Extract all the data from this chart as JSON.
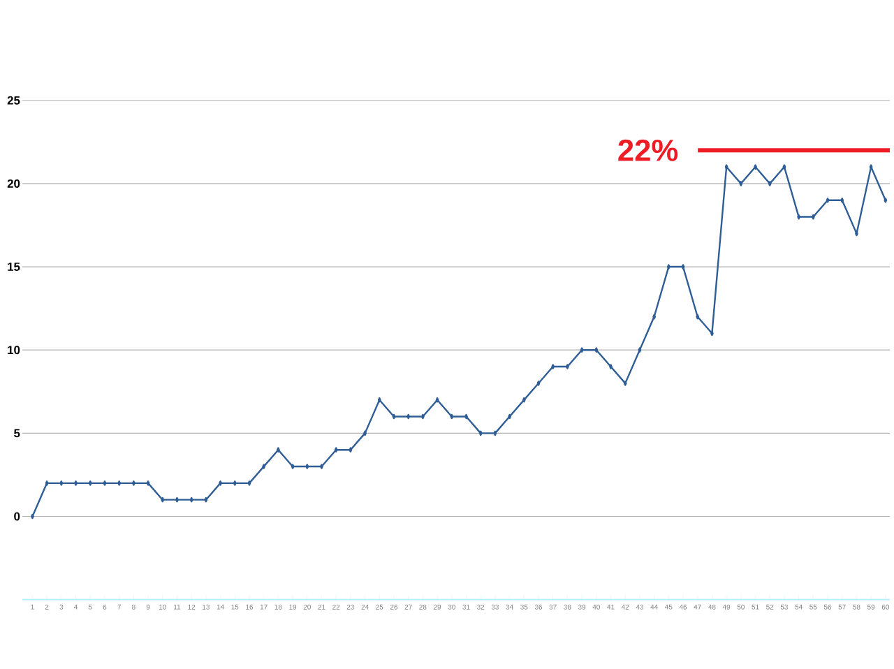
{
  "chart_data": {
    "type": "line",
    "categories": [
      "1",
      "2",
      "3",
      "4",
      "5",
      "6",
      "7",
      "8",
      "9",
      "10",
      "11",
      "12",
      "13",
      "14",
      "15",
      "16",
      "17",
      "18",
      "19",
      "20",
      "21",
      "22",
      "23",
      "24",
      "25",
      "26",
      "27",
      "28",
      "29",
      "30",
      "31",
      "32",
      "33",
      "34",
      "35",
      "36",
      "37",
      "38",
      "39",
      "40",
      "41",
      "42",
      "43",
      "44",
      "45",
      "46",
      "47",
      "48",
      "49",
      "50",
      "51",
      "52",
      "53",
      "54",
      "55",
      "56",
      "57",
      "58",
      "59",
      "60"
    ],
    "series": [
      {
        "color": "#2f5d95",
        "values": [
          0,
          2,
          2,
          2,
          2,
          2,
          2,
          2,
          2,
          1,
          1,
          1,
          1,
          2,
          2,
          2,
          3,
          4,
          3,
          3,
          3,
          4,
          4,
          5,
          7,
          6,
          6,
          6,
          7,
          6,
          6,
          5,
          5,
          6,
          7,
          8,
          9,
          9,
          10,
          10,
          9,
          8,
          10,
          12,
          15,
          15,
          12,
          11,
          21,
          20,
          21,
          20,
          21,
          18,
          18,
          19,
          19,
          17,
          21,
          19
        ]
      }
    ],
    "ylim": [
      -5,
      25
    ],
    "yticks": [
      0,
      5,
      10,
      15,
      20,
      25
    ],
    "grid": "y",
    "marker": "diamond",
    "line_style": "solid",
    "ref_lines": [
      {
        "axis": "y",
        "value": 22,
        "label": "22%",
        "color": "#ee1c25",
        "line_style": "solid"
      }
    ]
  }
}
